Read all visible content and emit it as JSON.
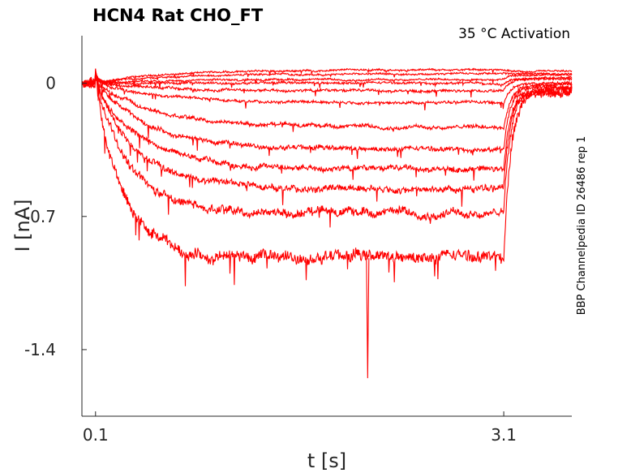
{
  "chart_data": {
    "type": "line",
    "title": "HCN4  Rat  CHO_FT",
    "subtitle": "35 °C  Activation",
    "xlabel": "t [s]",
    "ylabel": "I [nA]",
    "side_label": "BBP Channelpedia ID 26486 rep 1",
    "xlim": [
      0.0,
      3.6
    ],
    "ylim": [
      -1.75,
      0.25
    ],
    "x_ticks": [
      0.1,
      3.1
    ],
    "x_tick_labels": [
      "0.1",
      "3.1"
    ],
    "y_ticks": [
      0,
      -0.7,
      -1.4
    ],
    "y_tick_labels": [
      "0",
      "-0.7",
      "-1.4"
    ],
    "grid": false,
    "line_color": "#ff0000",
    "pulse": {
      "start": 0.1,
      "end": 3.1
    },
    "series": [
      {
        "steady": 0.07,
        "tail": 0.06,
        "tau": 0.5,
        "noise": 0.004
      },
      {
        "steady": 0.05,
        "tail": 0.05,
        "tau": 0.5,
        "noise": 0.004
      },
      {
        "steady": 0.02,
        "tail": 0.04,
        "tau": 0.5,
        "noise": 0.004
      },
      {
        "steady": 0.0,
        "tail": 0.03,
        "tau": 0.5,
        "noise": 0.005
      },
      {
        "steady": -0.04,
        "tail": 0.02,
        "tau": 0.5,
        "noise": 0.006
      },
      {
        "steady": -0.1,
        "tail": 0.0,
        "tau": 0.45,
        "noise": 0.006
      },
      {
        "steady": -0.23,
        "tail": -0.01,
        "tau": 0.45,
        "noise": 0.008
      },
      {
        "steady": -0.35,
        "tail": -0.02,
        "tau": 0.4,
        "noise": 0.01
      },
      {
        "steady": -0.45,
        "tail": -0.03,
        "tau": 0.35,
        "noise": 0.012
      },
      {
        "steady": -0.55,
        "tail": -0.04,
        "tau": 0.3,
        "noise": 0.014
      },
      {
        "steady": -0.68,
        "tail": -0.05,
        "tau": 0.25,
        "noise": 0.018
      },
      {
        "steady": -0.92,
        "tail": -0.06,
        "tau": 0.2,
        "noise": 0.025
      }
    ],
    "annotations": [
      {
        "type": "spike",
        "x": 2.1,
        "y": -1.55
      }
    ]
  }
}
